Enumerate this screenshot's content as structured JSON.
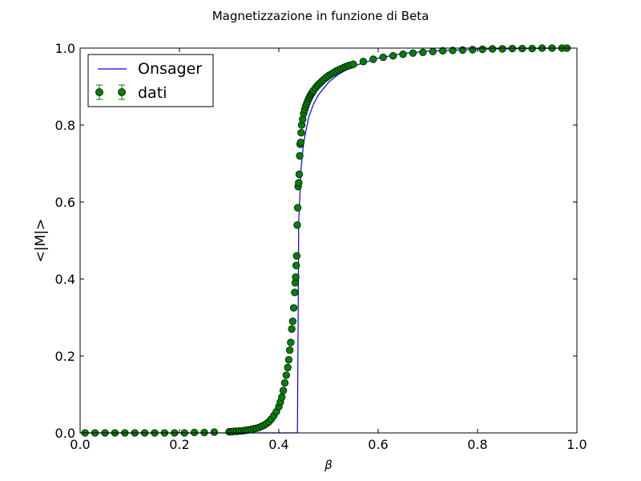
{
  "chart_data": {
    "type": "scatter",
    "title": "Magnetizzazione in funzione di Beta",
    "xlabel": "β",
    "ylabel": "<|M|>",
    "xlim": [
      0.0,
      1.0
    ],
    "ylim": [
      0.0,
      1.0
    ],
    "xticks": [
      "0.0",
      "0.2",
      "0.4",
      "0.6",
      "0.8",
      "1.0"
    ],
    "yticks": [
      "0.0",
      "0.2",
      "0.4",
      "0.6",
      "0.8",
      "1.0"
    ],
    "grid": false,
    "legend_position": "top-left",
    "series": [
      {
        "name": "Onsager",
        "kind": "line",
        "color": "#0000ff",
        "x": [
          0.0,
          0.43,
          0.4375,
          0.44,
          0.445,
          0.45,
          0.46,
          0.47,
          0.48,
          0.5,
          0.52,
          0.55,
          0.6,
          0.65,
          0.7,
          0.8,
          0.9,
          0.98
        ],
        "y": [
          0.0,
          0.0,
          0.0,
          0.55,
          0.69,
          0.755,
          0.82,
          0.855,
          0.879,
          0.911,
          0.932,
          0.953,
          0.974,
          0.986,
          0.992,
          0.997,
          0.999,
          1.0
        ]
      },
      {
        "name": "dati",
        "kind": "errorbar-points",
        "color": "#008000",
        "x": [
          0.01,
          0.03,
          0.05,
          0.07,
          0.09,
          0.11,
          0.13,
          0.15,
          0.17,
          0.19,
          0.21,
          0.23,
          0.25,
          0.27,
          0.3,
          0.305,
          0.31,
          0.315,
          0.32,
          0.325,
          0.33,
          0.335,
          0.34,
          0.345,
          0.35,
          0.355,
          0.36,
          0.365,
          0.37,
          0.375,
          0.38,
          0.385,
          0.39,
          0.395,
          0.4,
          0.403,
          0.406,
          0.409,
          0.412,
          0.415,
          0.418,
          0.42,
          0.422,
          0.424,
          0.426,
          0.428,
          0.43,
          0.432,
          0.433,
          0.434,
          0.435,
          0.436,
          0.437,
          0.438,
          0.439,
          0.44,
          0.441,
          0.442,
          0.443,
          0.444,
          0.445,
          0.446,
          0.448,
          0.45,
          0.452,
          0.454,
          0.456,
          0.458,
          0.46,
          0.462,
          0.464,
          0.466,
          0.468,
          0.47,
          0.474,
          0.478,
          0.482,
          0.486,
          0.49,
          0.495,
          0.5,
          0.505,
          0.51,
          0.515,
          0.52,
          0.525,
          0.53,
          0.535,
          0.54,
          0.545,
          0.55,
          0.57,
          0.59,
          0.61,
          0.63,
          0.65,
          0.67,
          0.69,
          0.71,
          0.73,
          0.75,
          0.77,
          0.79,
          0.81,
          0.83,
          0.85,
          0.87,
          0.89,
          0.91,
          0.93,
          0.95,
          0.97,
          0.98
        ],
        "y": [
          0.0,
          0.0,
          0.0,
          0.0,
          0.0,
          0.0,
          0.0,
          0.0,
          0.0,
          0.0,
          0.0,
          0.001,
          0.001,
          0.002,
          0.003,
          0.003,
          0.004,
          0.004,
          0.005,
          0.005,
          0.006,
          0.007,
          0.008,
          0.009,
          0.011,
          0.012,
          0.014,
          0.017,
          0.02,
          0.024,
          0.029,
          0.036,
          0.045,
          0.055,
          0.068,
          0.08,
          0.093,
          0.11,
          0.13,
          0.15,
          0.17,
          0.19,
          0.215,
          0.235,
          0.27,
          0.29,
          0.325,
          0.365,
          0.39,
          0.405,
          0.435,
          0.46,
          0.54,
          0.585,
          0.64,
          0.65,
          0.672,
          0.72,
          0.75,
          0.755,
          0.78,
          0.8,
          0.815,
          0.83,
          0.84,
          0.848,
          0.855,
          0.862,
          0.868,
          0.873,
          0.878,
          0.882,
          0.886,
          0.89,
          0.897,
          0.903,
          0.908,
          0.913,
          0.918,
          0.923,
          0.928,
          0.932,
          0.936,
          0.94,
          0.943,
          0.946,
          0.949,
          0.952,
          0.954,
          0.956,
          0.958,
          0.965,
          0.971,
          0.976,
          0.98,
          0.984,
          0.987,
          0.989,
          0.991,
          0.993,
          0.994,
          0.995,
          0.996,
          0.997,
          0.998,
          0.998,
          0.999,
          0.999,
          0.999,
          1.0,
          1.0,
          1.0,
          1.0
        ]
      }
    ]
  }
}
